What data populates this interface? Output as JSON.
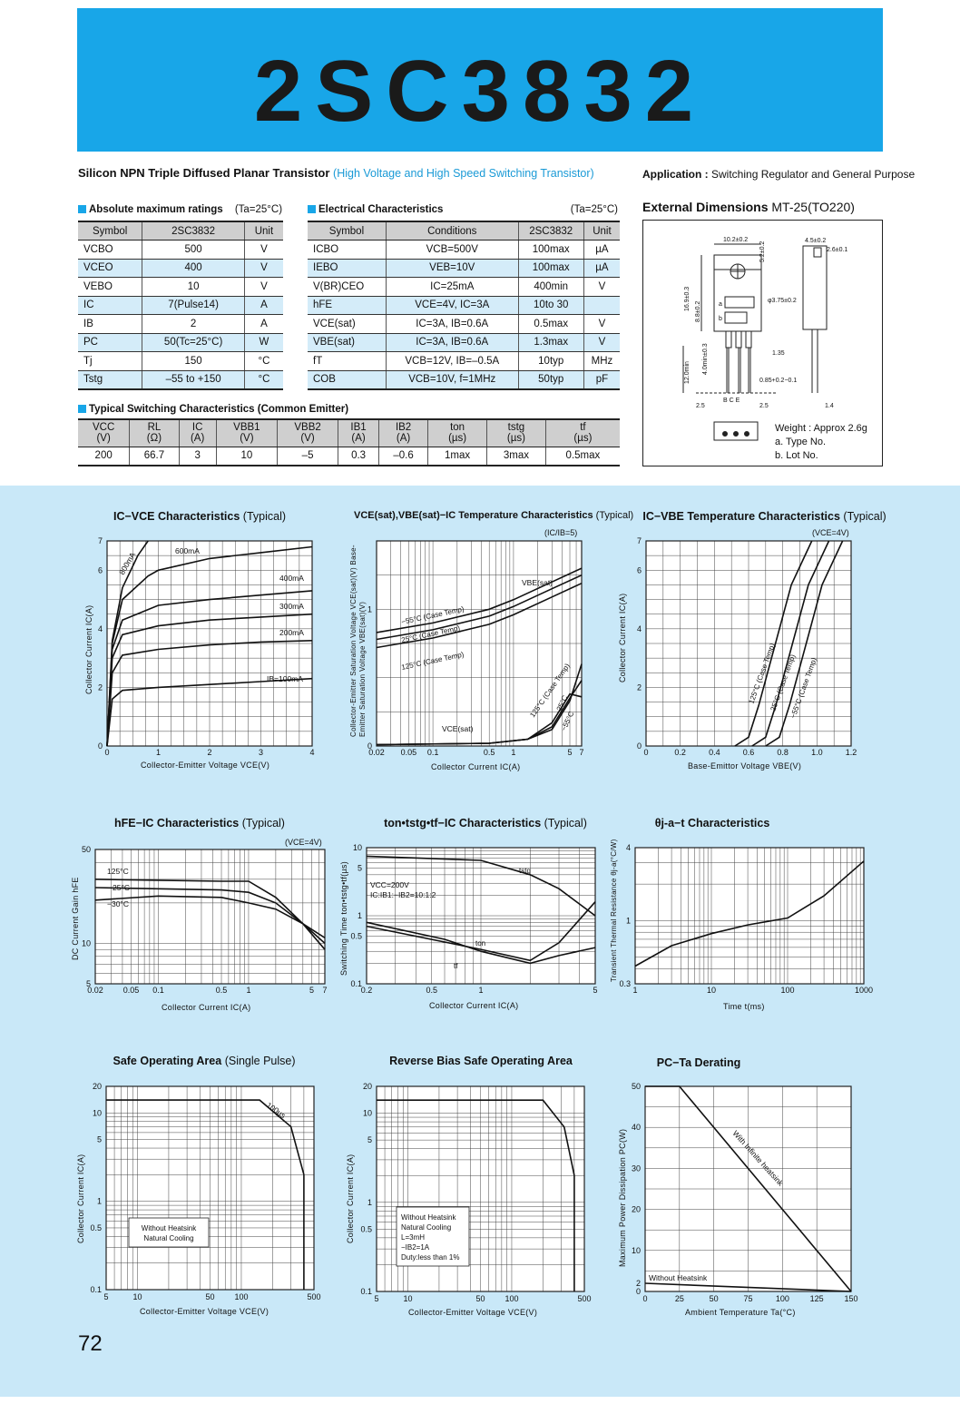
{
  "header": {
    "part_number": "2SC3832",
    "description": "Silicon NPN Triple Diffused Planar Transistor",
    "description_paren": "(High Voltage and High Speed Switching Transistor)",
    "application_label": "Application :",
    "application_text": "Switching Regulator and General Purpose"
  },
  "abs_max": {
    "title": "Absolute maximum ratings",
    "condition": "(Ta=25°C)",
    "headers": [
      "Symbol",
      "2SC3832",
      "Unit"
    ],
    "rows": [
      [
        "VCBO",
        "500",
        "V"
      ],
      [
        "VCEO",
        "400",
        "V"
      ],
      [
        "VEBO",
        "10",
        "V"
      ],
      [
        "IC",
        "7(Pulse14)",
        "A"
      ],
      [
        "IB",
        "2",
        "A"
      ],
      [
        "PC",
        "50(Tc=25°C)",
        "W"
      ],
      [
        "Tj",
        "150",
        "°C"
      ],
      [
        "Tstg",
        "–55 to +150",
        "°C"
      ]
    ]
  },
  "elec": {
    "title": "Electrical Characteristics",
    "condition": "(Ta=25°C)",
    "headers": [
      "Symbol",
      "Conditions",
      "2SC3832",
      "Unit"
    ],
    "rows": [
      [
        "ICBO",
        "VCB=500V",
        "100max",
        "µA"
      ],
      [
        "IEBO",
        "VEB=10V",
        "100max",
        "µA"
      ],
      [
        "V(BR)CEO",
        "IC=25mA",
        "400min",
        "V"
      ],
      [
        "hFE",
        "VCE=4V, IC=3A",
        "10to 30",
        ""
      ],
      [
        "VCE(sat)",
        "IC=3A, IB=0.6A",
        "0.5max",
        "V"
      ],
      [
        "VBE(sat)",
        "IC=3A, IB=0.6A",
        "1.3max",
        "V"
      ],
      [
        "fT",
        "VCB=12V, IB=–0.5A",
        "10typ",
        "MHz"
      ],
      [
        "COB",
        "VCB=10V, f=1MHz",
        "50typ",
        "pF"
      ]
    ]
  },
  "switching": {
    "title": "Typical Switching Characteristics (Common Emitter)",
    "headers": [
      [
        "VCC",
        "(V)"
      ],
      [
        "RL",
        "(Ω)"
      ],
      [
        "IC",
        "(A)"
      ],
      [
        "VBB1",
        "(V)"
      ],
      [
        "VBB2",
        "(V)"
      ],
      [
        "IB1",
        "(A)"
      ],
      [
        "IB2",
        "(A)"
      ],
      [
        "ton",
        "(µs)"
      ],
      [
        "tstg",
        "(µs)"
      ],
      [
        "tf",
        "(µs)"
      ]
    ],
    "values": [
      "200",
      "66.7",
      "3",
      "10",
      "–5",
      "0.3",
      "–0.6",
      "1max",
      "3max",
      "0.5max"
    ]
  },
  "dimensions": {
    "title": "External Dimensions",
    "package": "MT-25(TO220)",
    "weight": "Weight : Approx 2.6g",
    "note_a": "a. Type No.",
    "note_b": "b. Lot No.",
    "labels": {
      "d1": "10.2±0.2",
      "d2": "4.5±0.2",
      "d3": "2.6±0.1",
      "d4": "φ3.75±0.2",
      "d5": "16.9±0.3",
      "d6": "8.8±0.2",
      "d7": "12.0min",
      "d8": "4.0min±0.3",
      "d9": "1.35",
      "d10": "0.85+0.2−0.1",
      "d11": "2.5",
      "d12": "2.5",
      "d13": "1.4",
      "d14": "5.2±0.2",
      "a": "a",
      "b": "b",
      "pins": "B C E"
    }
  },
  "graphs": {
    "ic_vce": {
      "title_b": "IC−VCE Characteristics",
      "title_n": "(Typical)",
      "xlabel": "Collector-Emitter Voltage VCE(V)",
      "ylabel": "Collector Current IC(A)",
      "xticks": [
        "0",
        "1",
        "2",
        "3",
        "4"
      ],
      "yticks": [
        "0",
        "2",
        "4",
        "6",
        "7"
      ],
      "curves": [
        {
          "label": "IB=100mA"
        },
        {
          "label": "200mA"
        },
        {
          "label": "300mA"
        },
        {
          "label": "400mA"
        },
        {
          "label": "600mA"
        },
        {
          "label": "800mA"
        }
      ]
    },
    "vsat_ic": {
      "title_b": "VCE(sat),VBE(sat)−IC Temperature Characteristics",
      "title_n": "(Typical)",
      "cond": "(IC/IB=5)",
      "xlabel": "Collector Current IC(A)",
      "ylabel": "Collector-Emitter Saturation Voltage VCE(sat)(V) Base-Emitter Saturation Voltage VBE(sat)(V)",
      "xticks": [
        "0.02",
        "0.05",
        "0.1",
        "0.5",
        "1",
        "5",
        "7"
      ],
      "yticks": [
        "0",
        "1"
      ],
      "labels": [
        "VBE(sat)",
        "−55°C (Case Temp)",
        "25°C (Case Temp)",
        "125°C (Case Temp)",
        "VCE(sat)",
        "125°C (Case Temp)",
        "25°C",
        "−55°C"
      ]
    },
    "ic_vbe": {
      "title_b": "IC−VBE Temperature Characteristics",
      "title_n": "(Typical)",
      "cond": "(VCE=4V)",
      "xlabel": "Base-Emittor Voltage VBE(V)",
      "ylabel": "Collector Current IC(A)",
      "xticks": [
        "0",
        "0.2",
        "0.4",
        "0.6",
        "0.8",
        "1.0",
        "1.2"
      ],
      "yticks": [
        "0",
        "2",
        "4",
        "6",
        "7"
      ],
      "labels": [
        "125°C (Case Temp)",
        "25°C (Case Temp)",
        "−55°C (Case Temp)"
      ]
    },
    "hfe_ic": {
      "title_b": "hFE−IC Characteristics",
      "title_n": "(Typical)",
      "cond": "(VCE=4V)",
      "xlabel": "Collector Current IC(A)",
      "ylabel": "DC Current Gain hFE",
      "xticks": [
        "0.02",
        "0.05",
        "0.1",
        "0.5",
        "1",
        "5",
        "7"
      ],
      "yticks": [
        "5",
        "10",
        "50"
      ],
      "labels": [
        "125°C",
        "25°C",
        "−30°C"
      ]
    },
    "t_ic": {
      "title_b": "ton•tstg•tf−IC Characteristics",
      "title_n": "(Typical)",
      "xlabel": "Collector Current IC(A)",
      "ylabel": "Switching Time ton•tstg•tf(µs)",
      "xticks": [
        "0.2",
        "0.5",
        "1",
        "5"
      ],
      "yticks": [
        "0.1",
        "0.5",
        "1",
        "5",
        "10"
      ],
      "cond1": "VCC=200V",
      "cond2": "IC:IB1:−IB2=10:1:2",
      "labels": [
        "tstg",
        "ton",
        "tf"
      ]
    },
    "theta_t": {
      "title_b": "θj-a−t Characteristics",
      "title_n": "",
      "xlabel": "Time t(ms)",
      "ylabel": "Transient Thermal Resistance θj-a(°C/W)",
      "xticks": [
        "1",
        "10",
        "100",
        "1000"
      ],
      "yticks": [
        "0.3",
        "1",
        "4"
      ]
    },
    "soa": {
      "title_b": "Safe Operating Area",
      "title_n": "(Single Pulse)",
      "xlabel": "Collector-Emitter Voltage VCE(V)",
      "ylabel": "Collector Current IC(A)",
      "xticks": [
        "5",
        "10",
        "50",
        "100",
        "500"
      ],
      "yticks": [
        "0.1",
        "0.5",
        "1",
        "5",
        "10",
        "20"
      ],
      "labels": [
        "100µs"
      ],
      "note": [
        "Without Heatsink",
        "Natural Cooling"
      ]
    },
    "rbsoa": {
      "title_b": "Reverse Bias Safe Operating Area",
      "title_n": "",
      "xlabel": "Collector-Emitter Voltage VCE(V)",
      "ylabel": "Collector Current IC(A)",
      "xticks": [
        "5",
        "10",
        "50",
        "100",
        "500"
      ],
      "yticks": [
        "0.1",
        "0.5",
        "1",
        "5",
        "10",
        "20"
      ],
      "note": [
        "Without Heatsink",
        "Natural Cooling",
        "L=3mH",
        "−IB2=1A",
        "Duty:less than 1%"
      ]
    },
    "pc_ta": {
      "title_b": "PC−Ta Derating",
      "title_n": "",
      "xlabel": "Ambient Temperature Ta(°C)",
      "ylabel": "Maximum Power Dissipation PC(W)",
      "xticks": [
        "0",
        "25",
        "50",
        "75",
        "100",
        "125",
        "150"
      ],
      "yticks": [
        "0",
        "2",
        "10",
        "20",
        "30",
        "40",
        "50"
      ],
      "labels": [
        "With Infinite heatsink",
        "Without Heatsink"
      ]
    }
  },
  "chart_data": [
    {
      "type": "line",
      "title": "IC−VCE Characteristics (Typical)",
      "xlabel": "Collector-Emitter Voltage VCE(V)",
      "ylabel": "Collector Current IC(A)",
      "xlim": [
        0,
        4
      ],
      "ylim": [
        0,
        7
      ],
      "series": [
        {
          "name": "IB=100mA",
          "x": [
            0,
            0.1,
            0.3,
            1,
            2,
            3,
            4
          ],
          "y": [
            0,
            1.6,
            1.9,
            2.0,
            2.1,
            2.2,
            2.3
          ]
        },
        {
          "name": "200mA",
          "x": [
            0,
            0.1,
            0.3,
            1,
            2,
            3,
            4
          ],
          "y": [
            0,
            2.5,
            3.1,
            3.3,
            3.45,
            3.55,
            3.6
          ]
        },
        {
          "name": "300mA",
          "x": [
            0,
            0.1,
            0.3,
            1,
            2,
            3,
            4
          ],
          "y": [
            0,
            3.0,
            3.8,
            4.1,
            4.3,
            4.4,
            4.5
          ]
        },
        {
          "name": "400mA",
          "x": [
            0,
            0.1,
            0.3,
            1,
            2,
            3,
            4
          ],
          "y": [
            0,
            3.3,
            4.3,
            4.8,
            5.0,
            5.15,
            5.3
          ]
        },
        {
          "name": "600mA",
          "x": [
            0,
            0.1,
            0.3,
            0.8,
            1,
            2,
            3,
            4
          ],
          "y": [
            0,
            3.5,
            5.0,
            5.8,
            6.0,
            6.4,
            6.6,
            6.8
          ]
        },
        {
          "name": "800mA",
          "x": [
            0,
            0.1,
            0.3,
            0.6,
            0.8
          ],
          "y": [
            0,
            3.6,
            5.4,
            6.5,
            7.0
          ]
        }
      ]
    },
    {
      "type": "line",
      "title": "PC−Ta Derating",
      "xlabel": "Ambient Temperature Ta(°C)",
      "ylabel": "Maximum Power Dissipation PC(W)",
      "xlim": [
        0,
        150
      ],
      "ylim": [
        0,
        50
      ],
      "series": [
        {
          "name": "With Infinite heatsink",
          "x": [
            0,
            25,
            150
          ],
          "y": [
            50,
            50,
            0
          ]
        },
        {
          "name": "Without Heatsink",
          "x": [
            0,
            150
          ],
          "y": [
            2,
            0
          ]
        }
      ]
    }
  ],
  "page": {
    "number": "72"
  }
}
